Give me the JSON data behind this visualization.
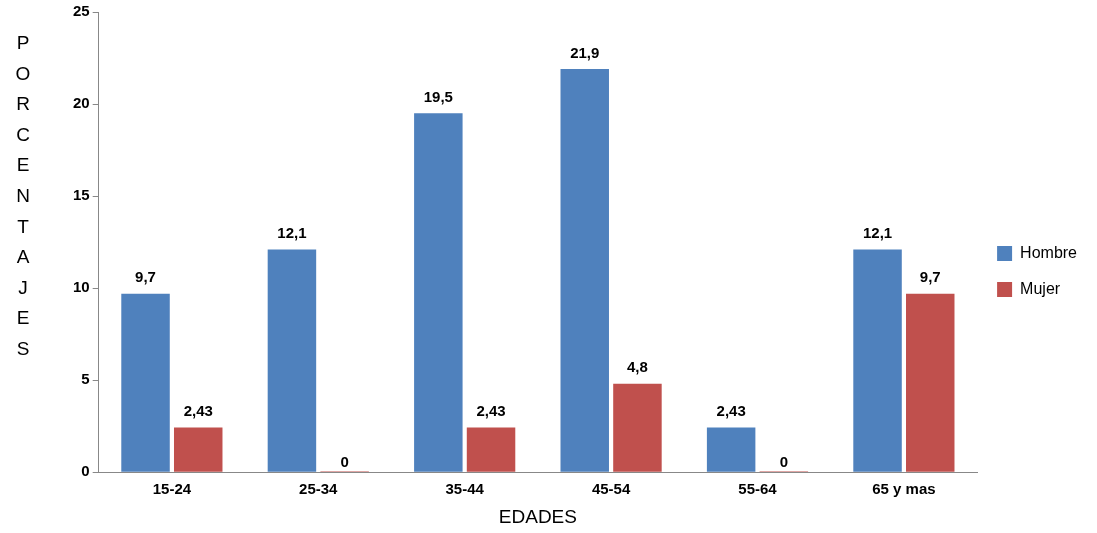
{
  "chart_data": {
    "type": "bar",
    "xlabel": "EDADES",
    "ylabel": "PORCENTAJES",
    "categories": [
      "15-24",
      "25-34",
      "35-44",
      "45-54",
      "55-64",
      "65 y mas"
    ],
    "series": [
      {
        "name": "Hombre",
        "color": "#4f81bd",
        "values": [
          9.7,
          12.1,
          19.5,
          21.9,
          2.43,
          12.1
        ],
        "value_labels": [
          "9,7",
          "12,1",
          "19,5",
          "21,9",
          "2,43",
          "12,1"
        ]
      },
      {
        "name": "Mujer",
        "color": "#c0504d",
        "values": [
          2.43,
          0,
          2.43,
          4.8,
          0,
          9.7
        ],
        "value_labels": [
          "2,43",
          "0",
          "2,43",
          "4,8",
          "0",
          "9,7"
        ]
      }
    ],
    "ylim": [
      0,
      25
    ],
    "yticks": [
      0,
      5,
      10,
      15,
      20,
      25
    ],
    "grid": false,
    "legend": "right"
  }
}
